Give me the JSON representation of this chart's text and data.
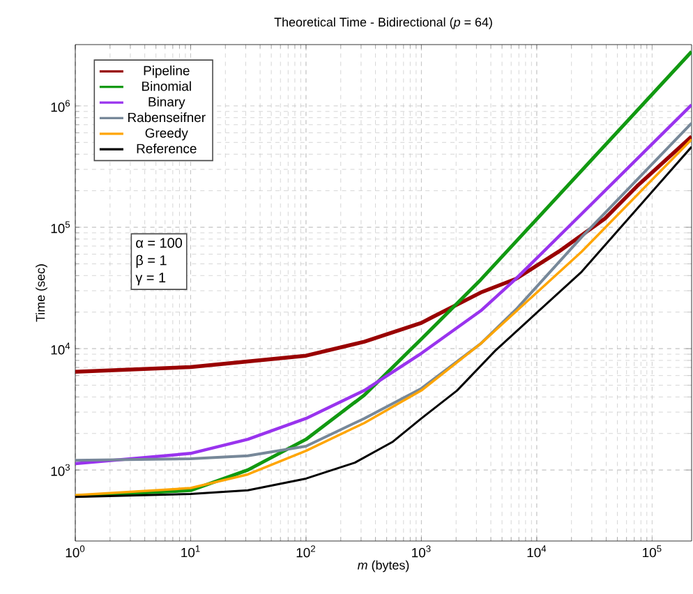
{
  "chart_data": {
    "type": "line",
    "title": "Theoretical Time - Bidirectional (*p* = 64)",
    "xlabel": "*m* (bytes)",
    "ylabel": "Time (sec)",
    "log": "xy",
    "grid": true,
    "legend": "top left",
    "xlim": [
      1,
      220000
    ],
    "ylim": [
      260,
      3200000
    ],
    "xticks": [
      {
        "value": 1,
        "label": "10$^{0}$"
      },
      {
        "value": 10,
        "label": "10$^{1}$"
      },
      {
        "value": 100,
        "label": "10$^{2}$"
      },
      {
        "value": 1000,
        "label": "10$^{3}$"
      },
      {
        "value": 10000,
        "label": "10$^{4}$"
      },
      {
        "value": 100000,
        "label": "10$^{5}$"
      }
    ],
    "yticks": [
      {
        "value": 1000,
        "label": "10$^{3}$"
      },
      {
        "value": 10000,
        "label": "10$^{4}$"
      },
      {
        "value": 100000,
        "label": "10$^{5}$"
      },
      {
        "value": 1000000,
        "label": "10$^{6}$"
      }
    ],
    "annotations": [
      "α = 100",
      "β = 1",
      "γ = 1"
    ],
    "series": [
      {
        "name": "Pipeline",
        "color": "#990000",
        "x": [
          1,
          10,
          100,
          320,
          1000,
          1250,
          3270,
          6600,
          15500,
          39000,
          74000,
          220000
        ],
        "values": [
          6440,
          7050,
          8750,
          11400,
          16300,
          18200,
          29000,
          37600,
          63000,
          118000,
          218000,
          560000
        ]
      },
      {
        "name": "Binomial",
        "color": "#119911",
        "x": [
          1,
          10,
          31.3,
          100,
          320,
          1000,
          3270,
          220000
        ],
        "values": [
          610,
          680,
          1000,
          1790,
          4140,
          12000,
          37000,
          2800000
        ]
      },
      {
        "name": "Binary",
        "color": "#9933ee",
        "x": [
          1,
          10,
          31.3,
          100,
          320,
          1000,
          3270,
          6600,
          24500,
          220000
        ],
        "values": [
          1130,
          1370,
          1790,
          2660,
          4520,
          9150,
          20500,
          37600,
          129000,
          1020000
        ]
      },
      {
        "name": "Rabenseifner",
        "color": "#778899",
        "x": [
          1,
          10,
          31.3,
          100,
          320,
          1000,
          3270,
          6600,
          24500,
          220000
        ],
        "values": [
          1200,
          1240,
          1310,
          1570,
          2660,
          4700,
          11000,
          21000,
          83000,
          720000
        ]
      },
      {
        "name": "Greedy",
        "color": "#ffa500",
        "x": [
          1,
          10,
          31.3,
          100,
          320,
          1000,
          3270,
          24500,
          220000
        ],
        "values": [
          620,
          710,
          920,
          1440,
          2440,
          4520,
          11000,
          63000,
          530000
        ]
      },
      {
        "name": "Reference",
        "color": "#000000",
        "x": [
          1,
          10,
          31.3,
          100,
          265,
          560,
          1000,
          2040,
          4360,
          24500,
          220000
        ],
        "values": [
          600,
          635,
          680,
          850,
          1150,
          1700,
          2660,
          4520,
          9600,
          43000,
          460000
        ]
      }
    ]
  }
}
